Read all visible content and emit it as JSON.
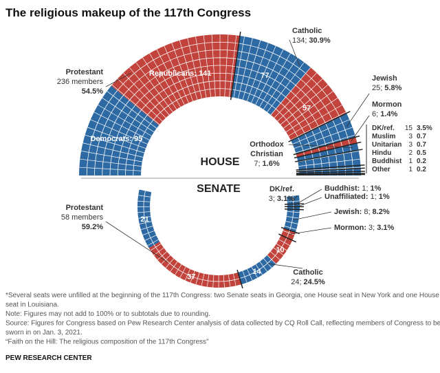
{
  "title": "The religious makeup of the 117th Congress",
  "chart_data": [
    {
      "type": "parliament",
      "label": "HOUSE",
      "groups": [
        {
          "name": "Protestant",
          "detail": "236 members",
          "share": "54.5%",
          "segments": [
            {
              "value": 95,
              "value_label": "Democrats: 95",
              "color": "#2d6aa3"
            },
            {
              "value": 141,
              "value_label": "Republicans: 141",
              "color": "#c1433b"
            }
          ]
        },
        {
          "name": "Catholic",
          "detail": "134;",
          "share": "30.9%",
          "segments": [
            {
              "value": 77,
              "color": "#2d6aa3"
            },
            {
              "value": 57,
              "color": "#c1433b"
            }
          ]
        },
        {
          "name": "Jewish",
          "share": "5.8%",
          "segments": [
            {
              "value": 25,
              "value_label": "25;",
              "color": "#2d6aa3"
            }
          ]
        },
        {
          "name": "Mormon",
          "share": "1.4%",
          "segments": [
            {
              "value": 6,
              "value_label": "6;",
              "color": "#c1433b"
            }
          ]
        },
        {
          "name": "Orthodox Christian",
          "share": "1.6%",
          "segments": [
            {
              "value": 7,
              "value_label": "7;",
              "color": "#2d6aa3"
            }
          ]
        },
        {
          "name": "DK/ref.",
          "share": "3.5%",
          "segments": [
            {
              "value": 15,
              "color": "#2d6aa3"
            }
          ]
        },
        {
          "name": "Muslim",
          "share": 0.7,
          "segments": [
            {
              "value": 3,
              "color": "#2d6aa3"
            }
          ]
        },
        {
          "name": "Unitarian",
          "share": 0.7,
          "segments": [
            {
              "value": 3,
              "color": "#2d6aa3"
            }
          ]
        },
        {
          "name": "Hindu",
          "share": 0.5,
          "segments": [
            {
              "value": 2,
              "color": "#2d6aa3"
            }
          ]
        },
        {
          "name": "Buddhist",
          "share": 0.2,
          "segments": [
            {
              "value": 1,
              "color": "#2d6aa3"
            }
          ]
        },
        {
          "name": "Other",
          "share": 0.2,
          "segments": [
            {
              "value": 1,
              "color": "#2d6aa3"
            }
          ]
        }
      ]
    },
    {
      "type": "donut",
      "label": "SENATE",
      "groups": [
        {
          "name": "Protestant",
          "detail": "58 members",
          "share": "59.2%",
          "segments": [
            {
              "value": 21,
              "color": "#2d6aa3"
            },
            {
              "value": 37,
              "color": "#c1433b"
            }
          ]
        },
        {
          "name": "Catholic",
          "detail": "24;",
          "share": "24.5%",
          "segments": [
            {
              "value": 14,
              "color": "#2d6aa3"
            },
            {
              "value": 10,
              "color": "#c1433b"
            }
          ]
        },
        {
          "name": "Mormon:",
          "share": "3.1%",
          "segments": [
            {
              "value": 3,
              "value_label": "3;",
              "color": "#c1433b"
            }
          ]
        },
        {
          "name": "Jewish:",
          "share": "8.2%",
          "segments": [
            {
              "value": 8,
              "value_label": "8;",
              "color": "#2d6aa3"
            }
          ]
        },
        {
          "name": "Unaffiliated:",
          "share": "1%",
          "segments": [
            {
              "value": 1,
              "value_label": "1;",
              "color": "#2d6aa3"
            }
          ]
        },
        {
          "name": "Buddhist:",
          "share": "1%",
          "segments": [
            {
              "value": 1,
              "value_label": "1;",
              "color": "#2d6aa3"
            }
          ]
        },
        {
          "name": "DK/ref.",
          "share": "3.1%",
          "segments": [
            {
              "value": 3,
              "value_label": "3;",
              "color": "#2d6aa3"
            }
          ]
        }
      ]
    }
  ],
  "notes": [
    "*Several seats were unfilled at the beginning of the 117th Congress: two Senate seats in Georgia, one House seat in New York and one House",
    "seat in Louisiana.",
    "Note: Figures may not add to 100% or to subtotals due to rounding.",
    "Source: Figures for Congress based on Pew Research Center analysis of data collected by CQ Roll Call, reflecting members of Congress to be",
    "sworn in on Jan. 3, 2021.",
    "“Faith on the Hill: The religious composition of the 117th Congress”"
  ],
  "brand": "PEW RESEARCH CENTER"
}
